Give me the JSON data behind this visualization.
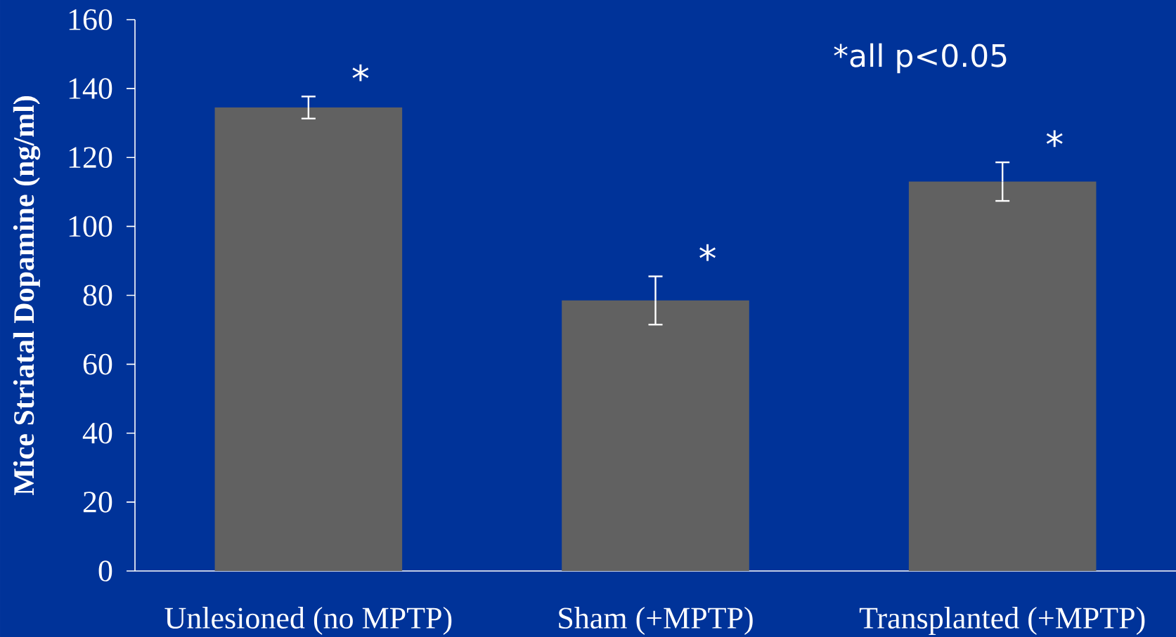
{
  "chart_data": {
    "type": "bar",
    "ylabel": "Mice Striatal Dopamine (ng/ml)",
    "categories": [
      "Unlesioned (no MPTP)",
      "Sham (+MPTP)",
      "Transplanted (+MPTP)"
    ],
    "values": [
      134.5,
      78.5,
      113
    ],
    "errors": [
      3.2,
      7,
      5.6
    ],
    "color": "#616161",
    "ylim": [
      0,
      160
    ],
    "yticks": [
      0,
      20,
      40,
      60,
      80,
      100,
      120,
      140,
      160
    ],
    "grid": false,
    "annotations": [
      "*",
      "*",
      "*",
      "*all p<0.05"
    ]
  }
}
